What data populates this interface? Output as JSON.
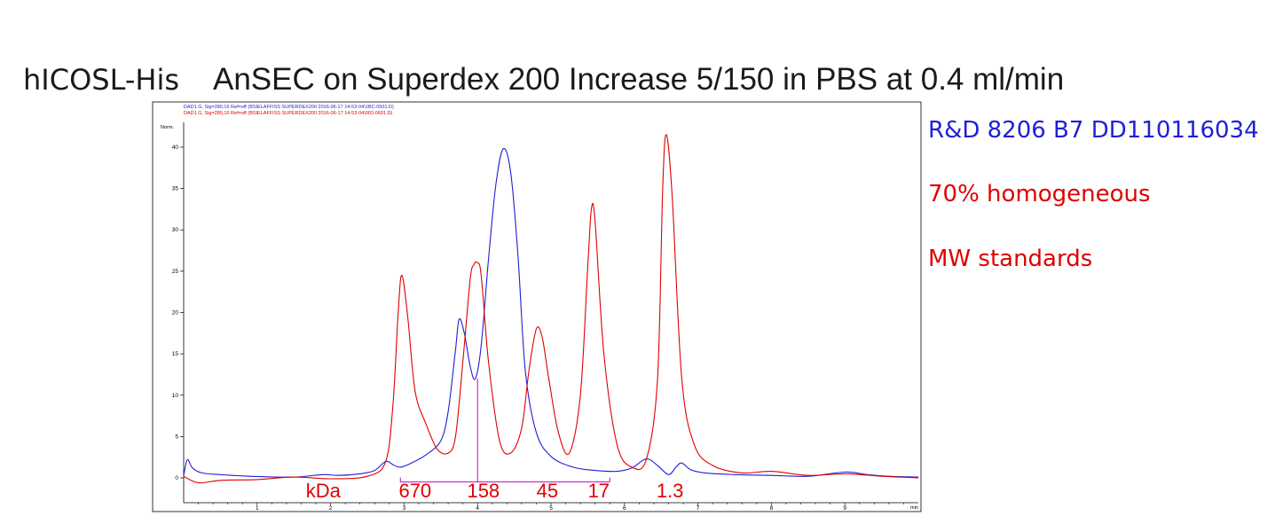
{
  "slide_title_protein": "hICOSL-His",
  "slide_title_method": "AnSEC on Superdex 200 Increase 5/150 in PBS at 0.4 ml/min",
  "legend": {
    "line1": "R&D 8206 B7 DD110116034",
    "line2": "70% homogeneous",
    "line3": "MW standards",
    "colors": {
      "blue": "#1f1fd6",
      "red": "#e00000"
    }
  },
  "chart_data": {
    "type": "line",
    "title": "",
    "xlabel": "min",
    "ylabel": "Norm.",
    "xlim": [
      0,
      10
    ],
    "ylim": [
      -3,
      43
    ],
    "x_ticks": [
      1,
      2,
      3,
      4,
      5,
      6,
      7,
      8,
      9
    ],
    "y_ticks": [
      0,
      5,
      10,
      15,
      20,
      25,
      30,
      35,
      40
    ],
    "header_lines": [
      "DAD1 G, Sig=280,16 Ref=off (BSIELAFFISS SUPERDEX200 2016-06-17 14-53-04\\1BC-0501.D)",
      "DAD1 G, Sig=280,16 Ref=off (BSIELAFFISS SUPERDEX200 2016-06-17 14-53-04\\003-0601.D)"
    ],
    "series": [
      {
        "color": "#1f1fd6",
        "x": [
          0.0,
          0.05,
          0.12,
          0.25,
          0.5,
          0.9,
          1.5,
          1.9,
          2.1,
          2.4,
          2.6,
          2.75,
          2.85,
          2.95,
          3.1,
          3.3,
          3.5,
          3.6,
          3.7,
          3.75,
          3.82,
          3.9,
          3.97,
          4.05,
          4.15,
          4.25,
          4.35,
          4.45,
          4.55,
          4.65,
          4.8,
          5.0,
          5.3,
          5.6,
          5.9,
          6.1,
          6.3,
          6.45,
          6.6,
          6.7,
          6.78,
          6.9,
          7.1,
          7.5,
          8.0,
          8.5,
          9.0,
          9.3,
          9.6,
          10.0
        ],
        "y": [
          0.3,
          2.2,
          1.2,
          0.6,
          0.4,
          0.2,
          0.1,
          0.4,
          0.3,
          0.5,
          0.9,
          2.0,
          1.6,
          1.3,
          1.8,
          2.8,
          4.5,
          8.0,
          15.5,
          19.2,
          17.5,
          13.5,
          12.0,
          16.0,
          26.5,
          35.5,
          39.8,
          37.0,
          27.0,
          13.0,
          5.5,
          2.6,
          1.3,
          0.9,
          0.8,
          1.2,
          2.3,
          1.5,
          0.4,
          1.3,
          1.8,
          1.0,
          0.6,
          0.4,
          0.3,
          0.2,
          0.7,
          0.4,
          0.2,
          0.1
        ]
      },
      {
        "color": "#e00000",
        "x": [
          0.0,
          0.2,
          0.5,
          1.0,
          1.5,
          2.0,
          2.5,
          2.75,
          2.85,
          2.92,
          2.97,
          3.05,
          3.15,
          3.3,
          3.45,
          3.6,
          3.7,
          3.8,
          3.9,
          3.95,
          4.0,
          4.05,
          4.15,
          4.3,
          4.45,
          4.6,
          4.7,
          4.8,
          4.88,
          4.97,
          5.1,
          5.25,
          5.4,
          5.5,
          5.55,
          5.6,
          5.72,
          5.9,
          6.1,
          6.3,
          6.45,
          6.52,
          6.57,
          6.65,
          6.78,
          6.95,
          7.2,
          7.6,
          8.0,
          8.5,
          9.0,
          9.5,
          10.0
        ],
        "y": [
          0.2,
          -0.6,
          -0.3,
          -0.2,
          0.1,
          -0.1,
          0.2,
          2.0,
          9.0,
          20.0,
          24.5,
          19.5,
          10.5,
          6.5,
          3.5,
          3.0,
          5.0,
          14.0,
          24.0,
          25.8,
          26.0,
          24.5,
          14.0,
          4.5,
          3.0,
          6.0,
          13.0,
          18.0,
          17.0,
          12.0,
          5.5,
          3.0,
          10.0,
          25.5,
          32.5,
          31.0,
          15.0,
          4.0,
          1.3,
          2.3,
          12.0,
          35.0,
          41.5,
          34.0,
          12.0,
          4.0,
          1.5,
          0.6,
          0.8,
          0.3,
          0.5,
          0.2,
          0.0
        ]
      }
    ],
    "annotations": {
      "line_color": "#cc00cc",
      "label_color": "#e00000",
      "bracket_x": [
        2.95,
        5.8
      ],
      "bracket_y": -0.5,
      "vline_x": 4.0,
      "vline_top": 12.0,
      "labels": [
        {
          "text": "kDa",
          "x": 1.9
        },
        {
          "text": "670",
          "x": 3.15
        },
        {
          "text": "158",
          "x": 4.08
        },
        {
          "text": "45",
          "x": 4.95
        },
        {
          "text": "17",
          "x": 5.65
        },
        {
          "text": "1.3",
          "x": 6.62
        }
      ]
    }
  }
}
